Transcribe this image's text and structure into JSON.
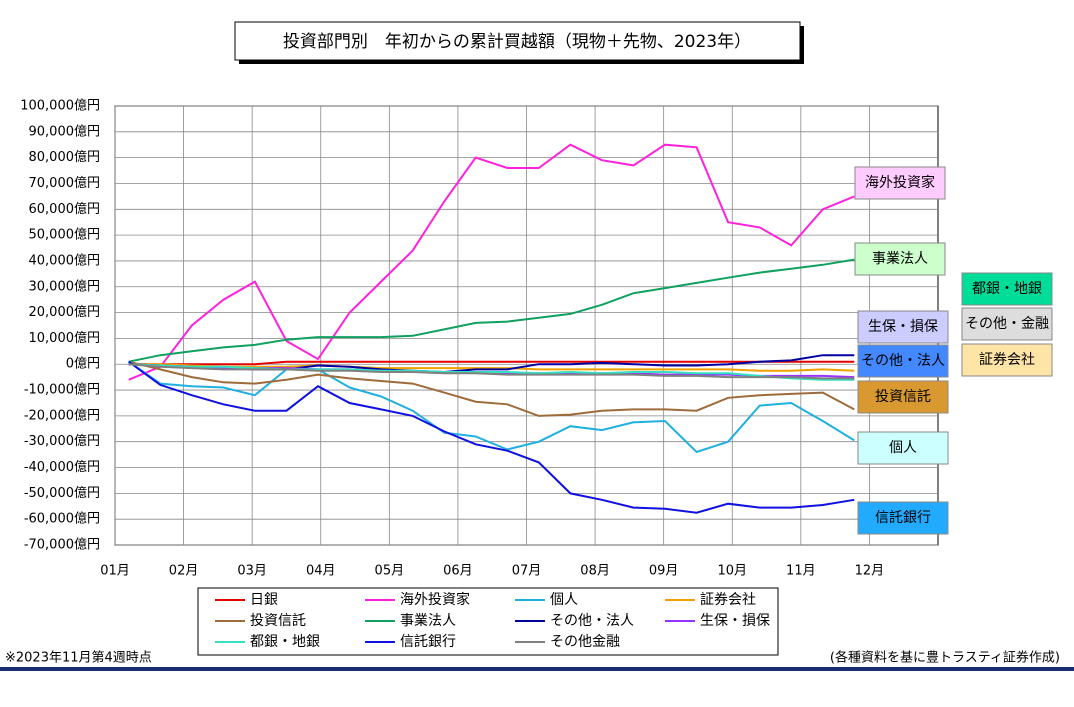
{
  "chart_data": {
    "type": "line",
    "title": "投資部門別　年初からの累計買越額（現物＋先物、2023年）",
    "footnote": "※2023年11月第4週時点",
    "source": "(各種資料を基に豊トラスティ証券作成)",
    "xlim": [
      0,
      12
    ],
    "xticks": [
      {
        "value": 0,
        "label": "01月"
      },
      {
        "value": 1,
        "label": "02月"
      },
      {
        "value": 2,
        "label": "03月"
      },
      {
        "value": 3,
        "label": "04月"
      },
      {
        "value": 4,
        "label": "05月"
      },
      {
        "value": 5,
        "label": "06月"
      },
      {
        "value": 6,
        "label": "07月"
      },
      {
        "value": 7,
        "label": "08月"
      },
      {
        "value": 8,
        "label": "09月"
      },
      {
        "value": 9,
        "label": "10月"
      },
      {
        "value": 10,
        "label": "11月"
      },
      {
        "value": 11,
        "label": "12月"
      }
    ],
    "ylim": [
      -70000,
      100000
    ],
    "yticks": [
      {
        "value": -70000,
        "label": "-70,000億円"
      },
      {
        "value": -60000,
        "label": "-60,000億円"
      },
      {
        "value": -50000,
        "label": "-50,000億円"
      },
      {
        "value": -40000,
        "label": "-40,000億円"
      },
      {
        "value": -30000,
        "label": "-30,000億円"
      },
      {
        "value": -20000,
        "label": "-20,000億円"
      },
      {
        "value": -10000,
        "label": "-10,000億円"
      },
      {
        "value": 0,
        "label": "0億円"
      },
      {
        "value": 10000,
        "label": "10,000億円"
      },
      {
        "value": 20000,
        "label": "20,000億円"
      },
      {
        "value": 30000,
        "label": "30,000億円"
      },
      {
        "value": 40000,
        "label": "40,000億円"
      },
      {
        "value": 50000,
        "label": "50,000億円"
      },
      {
        "value": 60000,
        "label": "60,000億円"
      },
      {
        "value": 70000,
        "label": "70,000億円"
      },
      {
        "value": 80000,
        "label": "80,000億円"
      },
      {
        "value": 90000,
        "label": "90,000億円"
      },
      {
        "value": 100000,
        "label": "100,000億円"
      }
    ],
    "grid": true,
    "x": [
      0.2,
      0.66,
      1.12,
      1.58,
      2.04,
      2.5,
      2.96,
      3.42,
      3.88,
      4.34,
      4.8,
      5.26,
      5.72,
      6.18,
      6.64,
      7.1,
      7.56,
      8.02,
      8.48,
      8.94,
      9.4,
      9.86,
      10.32,
      10.78
    ],
    "series": [
      {
        "name": "日銀",
        "color": "#e00000",
        "values": [
          0,
          0,
          0,
          0,
          0,
          1000,
          1000,
          1000,
          1000,
          1000,
          1000,
          1000,
          1000,
          1000,
          1000,
          1000,
          1000,
          1000,
          1000,
          1000,
          1000,
          1000,
          1000,
          1000
        ]
      },
      {
        "name": "海外投資家",
        "color": "#ff22dd",
        "values": [
          -6000,
          -1000,
          15000,
          25000,
          32000,
          9000,
          2000,
          20000,
          32000,
          44000,
          63000,
          80000,
          76000,
          76000,
          85000,
          79000,
          77000,
          85000,
          84000,
          55000,
          53000,
          46000,
          60000,
          65000
        ]
      },
      {
        "name": "個人",
        "color": "#20b0e0",
        "values": [
          1000,
          -7500,
          -8500,
          -9000,
          -12000,
          -2000,
          -2000,
          -9000,
          -12500,
          -18000,
          -26500,
          -28000,
          -33000,
          -30000,
          -24000,
          -25500,
          -22500,
          -22000,
          -34000,
          -30000,
          -16000,
          -15000,
          -22000,
          -29500
        ]
      },
      {
        "name": "証券会社",
        "color": "#f0a000",
        "values": [
          0,
          0,
          -500,
          -1000,
          -1000,
          -1000,
          -500,
          -1000,
          -1500,
          -1500,
          -1500,
          -1500,
          -1500,
          -2000,
          -2000,
          -2000,
          -2000,
          -2000,
          -2000,
          -2000,
          -2500,
          -2500,
          -2000,
          -2500
        ]
      },
      {
        "name": "投資信託",
        "color": "#9e6b3b",
        "values": [
          1000,
          -2000,
          -5000,
          -7000,
          -7500,
          -6000,
          -4000,
          -5500,
          -6500,
          -7500,
          -11000,
          -14500,
          -15500,
          -20000,
          -19500,
          -18000,
          -17500,
          -17500,
          -18000,
          -13000,
          -12000,
          -11500,
          -11000,
          -17500
        ]
      },
      {
        "name": "事業法人",
        "color": "#10a060",
        "values": [
          1000,
          3500,
          5000,
          6500,
          7500,
          9500,
          10500,
          10500,
          10500,
          11000,
          13500,
          16000,
          16500,
          18000,
          19500,
          23000,
          27500,
          29500,
          31500,
          33500,
          35500,
          37000,
          38500,
          40500
        ]
      },
      {
        "name": "その他・法人",
        "color": "#0000a0",
        "values": [
          0,
          -500,
          -1000,
          -1500,
          -2000,
          -2000,
          -500,
          -1000,
          -2000,
          -2500,
          -3000,
          -2000,
          -2000,
          0,
          0,
          500,
          0,
          -500,
          -500,
          0,
          1000,
          1500,
          3500,
          3500
        ]
      },
      {
        "name": "生保・損保",
        "color": "#9933ff",
        "values": [
          0,
          -500,
          -1000,
          -1500,
          -1500,
          -1500,
          -2000,
          -2000,
          -2500,
          -3000,
          -3000,
          -3000,
          -3500,
          -3500,
          -3500,
          -3500,
          -3500,
          -4000,
          -4000,
          -4000,
          -4500,
          -4500,
          -4500,
          -5000
        ]
      },
      {
        "name": "都銀・地銀",
        "color": "#33e0c0",
        "values": [
          0,
          -500,
          -1000,
          -1000,
          -1500,
          -2000,
          -2000,
          -2000,
          -2500,
          -2500,
          -3000,
          -3000,
          -3000,
          -3500,
          -3000,
          -3500,
          -3000,
          -3000,
          -3500,
          -3500,
          -4500,
          -5500,
          -6000,
          -6000
        ]
      },
      {
        "name": "信託銀行",
        "color": "#1010e0",
        "values": [
          1000,
          -8000,
          -12000,
          -15500,
          -18000,
          -18000,
          -8500,
          -15000,
          -17500,
          -20000,
          -26000,
          -31000,
          -33500,
          -38000,
          -50000,
          -52500,
          -55500,
          -56000,
          -57500,
          -54000,
          -55500,
          -55500,
          -54500,
          -52500
        ]
      },
      {
        "name": "その他金融",
        "color": "#808080",
        "values": [
          0,
          -1000,
          -1500,
          -2000,
          -2000,
          -2000,
          -2500,
          -2500,
          -3000,
          -3000,
          -3500,
          -3500,
          -4000,
          -4000,
          -4000,
          -4000,
          -4000,
          -4500,
          -4500,
          -5000,
          -5000,
          -5000,
          -5500,
          -5500
        ]
      }
    ],
    "annotations": [
      {
        "text": "海外投資家",
        "color": "#ffccff"
      },
      {
        "text": "事業法人",
        "color": "#ccffcc"
      },
      {
        "text": "都銀・地銀",
        "color": "#00dd99"
      },
      {
        "text": "生保・損保",
        "color": "#ccccff"
      },
      {
        "text": "その他・金融",
        "color": "#dddddd"
      },
      {
        "text": "その他・法人",
        "color": "#4488ff"
      },
      {
        "text": "証券会社",
        "color": "#ffe4a8"
      },
      {
        "text": "投資信託",
        "color": "#d89a30"
      },
      {
        "text": "個人",
        "color": "#ccffff"
      },
      {
        "text": "信託銀行",
        "color": "#22aaff"
      }
    ]
  }
}
